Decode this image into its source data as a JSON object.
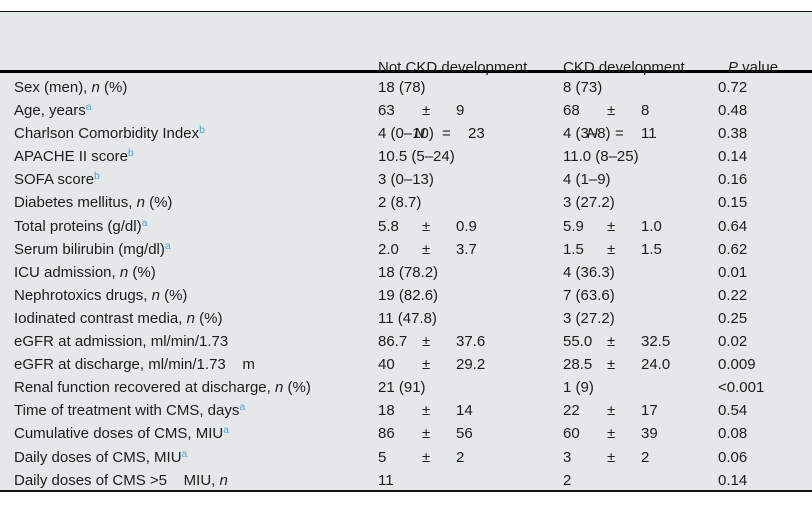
{
  "table": {
    "pm": "±",
    "colors": {
      "background": "#e4e8e9",
      "rule": "#000000",
      "text": "#1d1d1d",
      "footnote_marker": "#4da5d8"
    },
    "header": {
      "not_ckd": {
        "title": "Not CKD development",
        "n_label": "N",
        "eq": "=",
        "n_value": "23"
      },
      "ckd": {
        "title": "CKD development",
        "n_label": "N",
        "eq": "=",
        "n_value": "11"
      },
      "p": {
        "italic": "P",
        "rest": " value"
      }
    },
    "rows": [
      {
        "label": [
          {
            "t": "Sex (men), "
          },
          {
            "t": "n",
            "s": "i"
          },
          {
            "t": " (%)"
          }
        ],
        "not_ckd": "18 (78)",
        "ckd": "8 (73)",
        "p": "0.72"
      },
      {
        "label": [
          {
            "t": "Age, years"
          },
          {
            "t": "a",
            "s": "sup"
          }
        ],
        "not_ckd": {
          "v": "63",
          "sd": "9"
        },
        "ckd": {
          "v": "68",
          "sd": "8"
        },
        "p": "0.48"
      },
      {
        "label": [
          {
            "t": "Charlson Comorbidity Index"
          },
          {
            "t": "b",
            "s": "sup"
          }
        ],
        "not_ckd": "4 (0–10)",
        "ckd": "4 (3–8)",
        "p": "0.38"
      },
      {
        "label": [
          {
            "t": "APACHE II score"
          },
          {
            "t": "b",
            "s": "sup"
          }
        ],
        "not_ckd": "10.5 (5–24)",
        "ckd": "11.0 (8–25)",
        "p": "0.14"
      },
      {
        "label": [
          {
            "t": "SOFA score"
          },
          {
            "t": "b",
            "s": "sup"
          }
        ],
        "not_ckd": "3 (0–13)",
        "ckd": "4 (1–9)",
        "p": "0.16"
      },
      {
        "label": [
          {
            "t": "Diabetes mellitus, "
          },
          {
            "t": "n",
            "s": "i"
          },
          {
            "t": " (%)"
          }
        ],
        "not_ckd": "2 (8.7)",
        "ckd": "3 (27.2)",
        "p": "0.15"
      },
      {
        "label": [
          {
            "t": "Total proteins (g/dl)"
          },
          {
            "t": "a",
            "s": "sup"
          }
        ],
        "not_ckd": {
          "v": "5.8",
          "sd": "0.9"
        },
        "ckd": {
          "v": "5.9",
          "sd": "1.0"
        },
        "p": "0.64"
      },
      {
        "label": [
          {
            "t": "Serum bilirubin (mg/dl)"
          },
          {
            "t": "a",
            "s": "sup"
          }
        ],
        "not_ckd": {
          "v": "2.0",
          "sd": "3.7"
        },
        "ckd": {
          "v": "1.5",
          "sd": "1.5"
        },
        "p": "0.62"
      },
      {
        "label": [
          {
            "t": "ICU admission, "
          },
          {
            "t": "n",
            "s": "i"
          },
          {
            "t": " (%)"
          }
        ],
        "not_ckd": "18 (78.2)",
        "ckd": "4 (36.3)",
        "p": "0.01"
      },
      {
        "label": [
          {
            "t": "Nephrotoxics drugs, "
          },
          {
            "t": "n",
            "s": "i"
          },
          {
            "t": " (%)"
          }
        ],
        "not_ckd": "19 (82.6)",
        "ckd": "7 (63.6)",
        "p": "0.22"
      },
      {
        "label": [
          {
            "t": "Iodinated contrast media, "
          },
          {
            "t": "n",
            "s": "i"
          },
          {
            "t": " (%)"
          }
        ],
        "not_ckd": "11 (47.8)",
        "ckd": "3 (27.2)",
        "p": "0.25"
      },
      {
        "label": [
          {
            "t": "eGFR at admission, ml/min/1.73"
          }
        ],
        "not_ckd": {
          "v": "86.7",
          "sd": "37.6"
        },
        "ckd": {
          "v": "55.0",
          "sd": "32.5"
        },
        "p": "0.02"
      },
      {
        "label": [
          {
            "t": "eGFR at discharge, ml/min/1.73    m"
          }
        ],
        "not_ckd": {
          "v": "40",
          "sd": "29.2"
        },
        "ckd": {
          "v": "28.5",
          "sd": "24.0"
        },
        "p": "0.009"
      },
      {
        "label": [
          {
            "t": "Renal function recovered at discharge, "
          },
          {
            "t": "n",
            "s": "i"
          },
          {
            "t": " (%)"
          }
        ],
        "not_ckd": "21 (91)",
        "ckd": "1 (9)",
        "p": "<0.001"
      },
      {
        "label": [
          {
            "t": "Time of treatment with CMS, days"
          },
          {
            "t": "a",
            "s": "sup"
          }
        ],
        "not_ckd": {
          "v": "18",
          "sd": "14"
        },
        "ckd": {
          "v": "22",
          "sd": "17"
        },
        "p": "0.54"
      },
      {
        "label": [
          {
            "t": "Cumulative doses of CMS, MIU"
          },
          {
            "t": "a",
            "s": "sup"
          }
        ],
        "not_ckd": {
          "v": "86",
          "sd": "56"
        },
        "ckd": {
          "v": "60",
          "sd": "39"
        },
        "p": "0.08"
      },
      {
        "label": [
          {
            "t": "Daily doses of CMS, MIU"
          },
          {
            "t": "a",
            "s": "sup"
          }
        ],
        "not_ckd": {
          "v": "5",
          "sd": "2"
        },
        "ckd": {
          "v": "3",
          "sd": "2"
        },
        "p": "0.06"
      },
      {
        "label": [
          {
            "t": "Daily doses of CMS >5    MIU, "
          },
          {
            "t": "n",
            "s": "i"
          }
        ],
        "not_ckd": "11",
        "ckd": "2",
        "p": "0.14"
      }
    ]
  }
}
